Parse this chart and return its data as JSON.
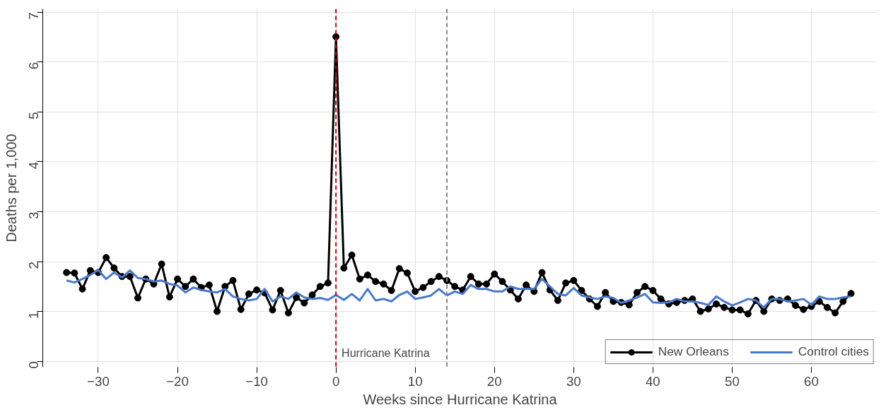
{
  "chart_data": {
    "type": "line",
    "xlabel": "Weeks since Hurricane Katrina",
    "ylabel": "Deaths per 1,000",
    "x": [
      -34,
      -33,
      -32,
      -31,
      -30,
      -29,
      -28,
      -27,
      -26,
      -25,
      -24,
      -23,
      -22,
      -21,
      -20,
      -19,
      -18,
      -17,
      -16,
      -15,
      -14,
      -13,
      -12,
      -11,
      -10,
      -9,
      -8,
      -7,
      -6,
      -5,
      -4,
      -3,
      -2,
      -1,
      0,
      1,
      2,
      3,
      4,
      5,
      6,
      7,
      8,
      9,
      10,
      11,
      12,
      13,
      14,
      15,
      16,
      17,
      18,
      19,
      20,
      21,
      22,
      23,
      24,
      25,
      26,
      27,
      28,
      29,
      30,
      31,
      32,
      33,
      34,
      35,
      36,
      37,
      38,
      39,
      40,
      41,
      42,
      43,
      44,
      45,
      46,
      47,
      48,
      49,
      50,
      51,
      52,
      53,
      54,
      55,
      56,
      57,
      58,
      59,
      60,
      61,
      62,
      63,
      64,
      65
    ],
    "series": [
      {
        "name": "New Orleans",
        "color": "#000000",
        "marker": "circle",
        "values": [
          1.78,
          1.77,
          1.45,
          1.82,
          1.78,
          2.08,
          1.87,
          1.7,
          1.7,
          1.27,
          1.65,
          1.55,
          1.95,
          1.29,
          1.65,
          1.5,
          1.65,
          1.48,
          1.53,
          1.0,
          1.5,
          1.62,
          1.04,
          1.35,
          1.43,
          1.37,
          1.03,
          1.42,
          0.97,
          1.28,
          1.17,
          1.33,
          1.5,
          1.57,
          6.51,
          1.87,
          2.13,
          1.65,
          1.73,
          1.6,
          1.55,
          1.42,
          1.86,
          1.77,
          1.4,
          1.48,
          1.6,
          1.7,
          1.62,
          1.5,
          1.43,
          1.7,
          1.55,
          1.55,
          1.75,
          1.6,
          1.43,
          1.25,
          1.53,
          1.4,
          1.78,
          1.43,
          1.22,
          1.57,
          1.62,
          1.42,
          1.25,
          1.1,
          1.38,
          1.2,
          1.18,
          1.13,
          1.38,
          1.5,
          1.42,
          1.25,
          1.15,
          1.18,
          1.22,
          1.25,
          1.0,
          1.05,
          1.15,
          1.08,
          1.03,
          1.03,
          0.95,
          1.22,
          1.0,
          1.25,
          1.22,
          1.25,
          1.12,
          1.04,
          1.1,
          1.2,
          1.08,
          0.97,
          1.2,
          1.36
        ]
      },
      {
        "name": "Control cities",
        "color": "#4a78c8",
        "marker": "none",
        "values": [
          1.62,
          1.58,
          1.65,
          1.73,
          1.83,
          1.65,
          1.78,
          1.68,
          1.82,
          1.67,
          1.65,
          1.6,
          1.62,
          1.55,
          1.52,
          1.38,
          1.48,
          1.43,
          1.4,
          1.38,
          1.45,
          1.3,
          1.25,
          1.22,
          1.25,
          1.45,
          1.2,
          1.3,
          1.25,
          1.38,
          1.28,
          1.25,
          1.27,
          1.23,
          1.33,
          1.23,
          1.35,
          1.22,
          1.45,
          1.22,
          1.25,
          1.2,
          1.33,
          1.4,
          1.25,
          1.28,
          1.32,
          1.45,
          1.32,
          1.4,
          1.35,
          1.53,
          1.45,
          1.45,
          1.4,
          1.4,
          1.5,
          1.45,
          1.45,
          1.45,
          1.65,
          1.5,
          1.35,
          1.32,
          1.47,
          1.32,
          1.28,
          1.25,
          1.3,
          1.27,
          1.17,
          1.22,
          1.28,
          1.35,
          1.18,
          1.17,
          1.18,
          1.25,
          1.2,
          1.2,
          1.17,
          1.13,
          1.3,
          1.2,
          1.12,
          1.18,
          1.25,
          1.22,
          1.08,
          1.25,
          1.25,
          1.2,
          1.22,
          1.25,
          1.13,
          1.3,
          1.25,
          1.25,
          1.28,
          1.3
        ]
      }
    ],
    "xlim": [
      -37,
      68.3
    ],
    "ylim": [
      -0.12,
      7.07
    ],
    "xticks": [
      -30,
      -20,
      -10,
      0,
      10,
      20,
      30,
      40,
      50,
      60
    ],
    "yticks": [
      0,
      1,
      2,
      3,
      4,
      5,
      6,
      7
    ],
    "ref_lines": [
      {
        "axis": "x",
        "value": 0,
        "label": "Hurricane Katrina",
        "color": "#cc0000",
        "line_style": "dashed"
      },
      {
        "axis": "x",
        "value": 14,
        "label": null,
        "color": "#888888",
        "line_style": "dashed"
      }
    ],
    "grid": true,
    "legend": "bottom right",
    "line_style": "solid"
  }
}
